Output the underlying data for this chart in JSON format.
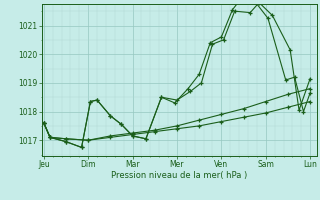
{
  "background_color": "#c6ece8",
  "grid_color_major": "#96c8c0",
  "grid_color_minor": "#b0d8d2",
  "line_color": "#1a5e1a",
  "x_ticks_labels": [
    "Jeu",
    "Dim",
    "Mar",
    "Mer",
    "Ven",
    "Sam",
    "Lun"
  ],
  "xlabel": "Pression niveau de la mer( hPa )",
  "ylim": [
    1016.45,
    1021.75
  ],
  "yticks": [
    1017,
    1018,
    1019,
    1020,
    1021
  ],
  "line1_x": [
    0,
    0.14,
    0.5,
    1.0,
    1.5,
    2.0,
    2.5,
    3.0,
    3.5,
    4.0,
    4.5,
    5.0,
    5.5,
    6.0
  ],
  "line1_y": [
    1017.6,
    1017.1,
    1017.05,
    1017.0,
    1017.1,
    1017.2,
    1017.3,
    1017.4,
    1017.5,
    1017.65,
    1017.8,
    1017.95,
    1018.15,
    1018.35
  ],
  "line2_x": [
    0,
    0.14,
    0.5,
    1.0,
    1.5,
    2.0,
    2.5,
    3.0,
    3.5,
    4.0,
    4.5,
    5.0,
    5.5,
    6.0
  ],
  "line2_y": [
    1017.6,
    1017.1,
    1017.05,
    1017.0,
    1017.15,
    1017.25,
    1017.35,
    1017.5,
    1017.7,
    1017.9,
    1018.1,
    1018.35,
    1018.6,
    1018.8
  ],
  "line3_x": [
    0,
    0.14,
    0.5,
    0.85,
    1.05,
    1.2,
    1.5,
    1.75,
    2.0,
    2.3,
    2.65,
    3.0,
    3.3,
    3.55,
    3.8,
    4.05,
    4.3,
    4.65,
    4.85,
    5.15,
    5.55,
    5.75,
    6.0
  ],
  "line3_y": [
    1017.6,
    1017.1,
    1016.95,
    1016.75,
    1018.35,
    1018.4,
    1017.85,
    1017.55,
    1017.15,
    1017.05,
    1018.5,
    1018.4,
    1018.7,
    1019.0,
    1020.35,
    1020.5,
    1021.5,
    1021.45,
    1021.8,
    1021.35,
    1020.15,
    1018.05,
    1019.15
  ],
  "line4_x": [
    0,
    0.14,
    0.5,
    0.85,
    1.05,
    1.2,
    1.5,
    1.75,
    2.0,
    2.3,
    2.65,
    2.95,
    3.25,
    3.5,
    3.75,
    4.0,
    4.25,
    4.5,
    4.75,
    5.05,
    5.45,
    5.65,
    5.85,
    6.0
  ],
  "line4_y": [
    1017.6,
    1017.1,
    1016.95,
    1016.75,
    1018.35,
    1018.4,
    1017.85,
    1017.55,
    1017.15,
    1017.05,
    1018.5,
    1018.3,
    1018.8,
    1019.3,
    1020.4,
    1020.6,
    1021.55,
    1022.05,
    1021.85,
    1021.25,
    1019.1,
    1019.2,
    1018.0,
    1018.65
  ]
}
